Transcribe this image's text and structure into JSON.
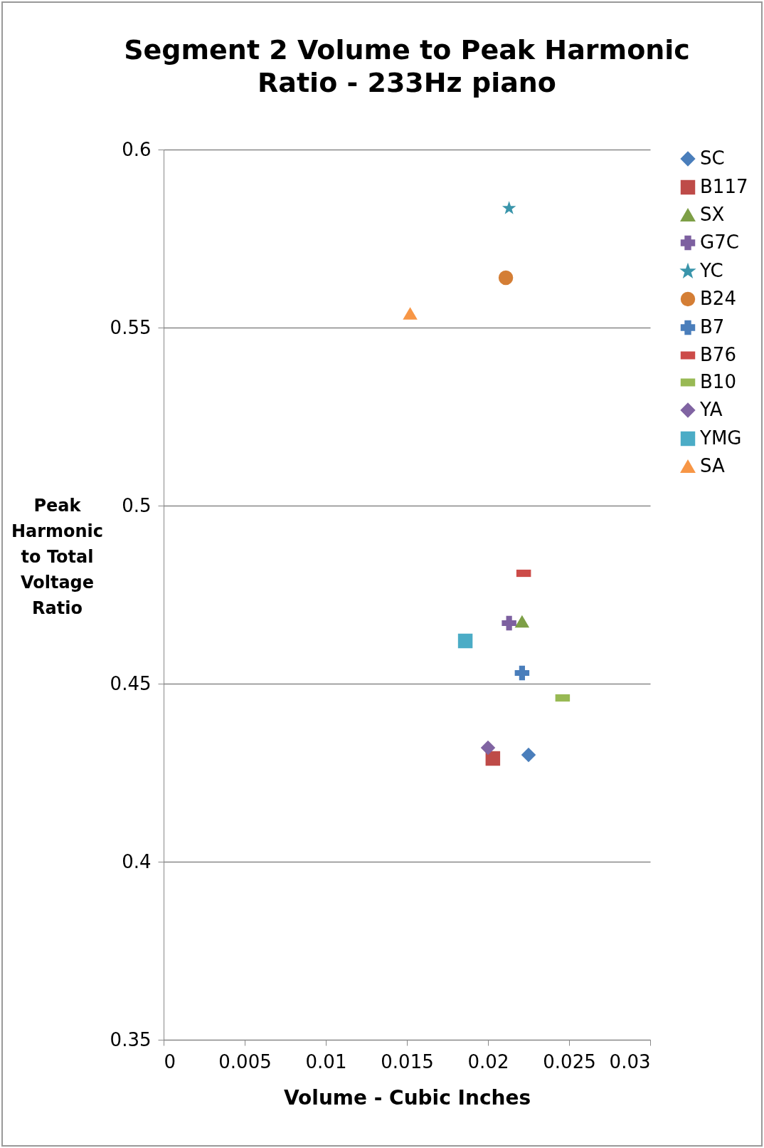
{
  "chart_data": {
    "type": "scatter",
    "title": "Segment 2 Volume to Peak Harmonic Ratio - 233Hz piano",
    "xlabel": "Volume - Cubic Inches",
    "ylabel": "Peak Harmonic to Total Voltage Ratio",
    "xlim": [
      0,
      0.03
    ],
    "xticks": [
      0,
      0.005,
      0.01,
      0.015,
      0.02,
      0.025,
      0.03
    ],
    "ylim": [
      0.35,
      0.6
    ],
    "yticks": [
      0.35,
      0.4,
      0.45,
      0.5,
      0.55,
      0.6
    ],
    "grid": "y",
    "legend": "right",
    "series": [
      {
        "name": "SC",
        "color": "#4a7ebb",
        "marker": "diamond",
        "x": [
          0.0225
        ],
        "values": [
          0.43
        ]
      },
      {
        "name": "B117",
        "color": "#be4b48",
        "marker": "square",
        "x": [
          0.0203
        ],
        "values": [
          0.429
        ]
      },
      {
        "name": "SX",
        "color": "#7d9f46",
        "marker": "triangle",
        "x": [
          0.0221
        ],
        "values": [
          0.4675
        ]
      },
      {
        "name": "G7C",
        "color": "#7d60a0",
        "marker": "cross",
        "x": [
          0.0213
        ],
        "values": [
          0.467
        ]
      },
      {
        "name": "YC",
        "color": "#3a95ab",
        "marker": "star",
        "x": [
          0.0213
        ],
        "values": [
          0.5835
        ]
      },
      {
        "name": "B24",
        "color": "#d47e35",
        "marker": "circle",
        "x": [
          0.0211
        ],
        "values": [
          0.564
        ]
      },
      {
        "name": "B7",
        "color": "#4a7ebb",
        "marker": "cross",
        "x": [
          0.0221
        ],
        "values": [
          0.453
        ]
      },
      {
        "name": "B76",
        "color": "#cc4b48",
        "x": [
          0.0222
        ],
        "values": [
          0.481
        ]
      },
      {
        "name": "B10",
        "color": "#98b954",
        "x": [
          0.0246
        ],
        "values": [
          0.446
        ]
      },
      {
        "name": "YA",
        "color": "#8064a2",
        "marker": "diamond",
        "x": [
          0.02
        ],
        "values": [
          0.432
        ]
      },
      {
        "name": "YMG",
        "color": "#4bacc6",
        "marker": "square",
        "x": [
          0.0186
        ],
        "values": [
          0.462
        ]
      },
      {
        "name": "SA",
        "color": "#f79646",
        "marker": "triangle",
        "x": [
          0.0152
        ],
        "values": [
          0.554
        ]
      }
    ]
  }
}
